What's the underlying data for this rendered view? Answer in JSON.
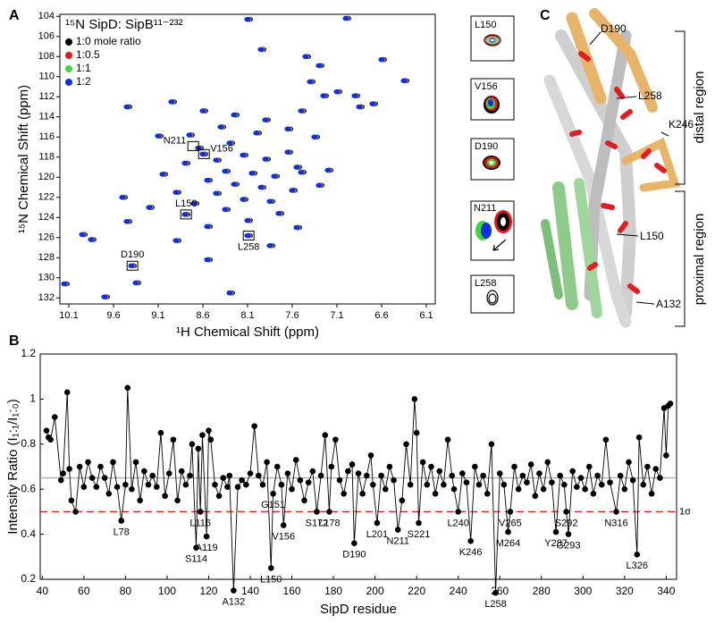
{
  "panel_labels": [
    "A",
    "B",
    "C"
  ],
  "insets": [
    "L150",
    "V156",
    "D190",
    "N211",
    "L258"
  ],
  "structure": {
    "residues": [
      "D190",
      "L258",
      "K246",
      "L150",
      "A132"
    ],
    "regions": [
      "distal region",
      "proximal region"
    ]
  },
  "chart_data": [
    {
      "type": "scatter",
      "legend_title": "¹⁵N SipD: SipB¹¹⁻²³²",
      "xlabel": "¹H Chemical Shift (ppm)",
      "ylabel": "¹⁵N Chemical Shift (ppm)",
      "legend": [
        {
          "name": "1:0 mole ratio",
          "color": "#000000"
        },
        {
          "name": "1:0.5",
          "color": "#e8141b"
        },
        {
          "name": "1:1",
          "color": "#3dd93a"
        },
        {
          "name": "1:2",
          "color": "#1030e0"
        }
      ],
      "xlim": [
        10.2,
        6.0
      ],
      "ylim": [
        103.8,
        132.6
      ],
      "y_inverted": true,
      "xticks": [
        10.1,
        9.6,
        9.1,
        8.6,
        8.1,
        7.6,
        7.1,
        6.6,
        6.1
      ],
      "yticks": [
        104,
        106,
        108,
        110,
        112,
        114,
        116,
        118,
        120,
        122,
        124,
        126,
        128,
        130,
        132
      ],
      "x": [
        7.0,
        8.1,
        7.45,
        7.95,
        7.3,
        6.6,
        6.35,
        7.4,
        7.1,
        7.25,
        6.9,
        6.85,
        7.5,
        6.7,
        8.95,
        8.6,
        9.45,
        8.25,
        7.9,
        8.4,
        9.1,
        7.65,
        8.0,
        8.3,
        8.65,
        8.6,
        8.45,
        8.15,
        7.9,
        7.65,
        8.8,
        9.05,
        8.35,
        8.05,
        7.8,
        7.5,
        7.2,
        8.55,
        8.25,
        7.95,
        7.6,
        8.9,
        8.45,
        8.15,
        7.85,
        7.3,
        9.5,
        8.7,
        8.8,
        8.35,
        7.75,
        9.45,
        8.55,
        8.1,
        7.55,
        8.9,
        8.1,
        7.85,
        9.85,
        9.95,
        9.4,
        8.55,
        9.35,
        9.7,
        10.15,
        8.3,
        7.55,
        7.35,
        8.75,
        9.2
      ],
      "y": [
        104.2,
        104.3,
        108.0,
        107.3,
        108.9,
        108.3,
        110.4,
        110.5,
        111.5,
        111.9,
        111.9,
        113.0,
        113.4,
        112.7,
        112.5,
        113.4,
        113.0,
        113.8,
        114.3,
        115.0,
        115.9,
        115.2,
        115.6,
        116.6,
        117.1,
        117.7,
        118.3,
        117.8,
        118.2,
        117.5,
        118.6,
        119.7,
        119.4,
        119.6,
        119.9,
        119.5,
        119.3,
        120.3,
        120.7,
        121.0,
        121.3,
        121.5,
        121.6,
        122.2,
        122.4,
        120.8,
        122.0,
        122.6,
        123.7,
        123.2,
        123.6,
        124.4,
        124.9,
        124.3,
        125.0,
        126.3,
        125.8,
        126.8,
        126.2,
        125.7,
        128.8,
        128.2,
        130.5,
        131.9,
        130.6,
        131.5,
        119.0,
        116.0,
        115.8,
        123.0
      ],
      "annotations": [
        {
          "text": "D190",
          "x": 9.4,
          "y": 128.8,
          "side": "above"
        },
        {
          "text": "L150",
          "x": 8.8,
          "y": 123.7,
          "side": "above"
        },
        {
          "text": "N211",
          "x": 8.72,
          "y": 116.9,
          "side": "left"
        },
        {
          "text": "V156",
          "x": 8.6,
          "y": 117.7,
          "side": "right"
        },
        {
          "text": "L258",
          "x": 8.1,
          "y": 125.8,
          "side": "below"
        }
      ]
    },
    {
      "type": "line",
      "xlabel": "SipD residue",
      "ylabel": "Intensity Ratio (I₁:₁/I₁:₀)",
      "xlim": [
        39,
        345
      ],
      "ylim": [
        0.2,
        1.2
      ],
      "xticks": [
        40,
        60,
        80,
        100,
        120,
        140,
        160,
        180,
        200,
        220,
        240,
        260,
        280,
        300,
        320,
        340
      ],
      "yticks": [
        0.2,
        0.4,
        0.6,
        0.8,
        1,
        1.2
      ],
      "color": "#000000",
      "mean_line": 0.65,
      "mean_color": "#999999",
      "threshold": {
        "value": 0.5,
        "label": "1σ",
        "color": "#e8141b"
      },
      "x": [
        42,
        43,
        44,
        46,
        49,
        50,
        52,
        53,
        54,
        56,
        58,
        60,
        62,
        64,
        66,
        68,
        70,
        72,
        74,
        76,
        78,
        80,
        81,
        83,
        85,
        87,
        89,
        91,
        93,
        95,
        97,
        99,
        101,
        103,
        105,
        107,
        109,
        111,
        112,
        114,
        115,
        116,
        117,
        119,
        120,
        121,
        123,
        125,
        127,
        129,
        130,
        132,
        134,
        136,
        138,
        140,
        142,
        144,
        146,
        148,
        150,
        151,
        153,
        155,
        156,
        158,
        160,
        162,
        164,
        166,
        168,
        170,
        172,
        174,
        176,
        178,
        179,
        181,
        183,
        185,
        187,
        189,
        190,
        192,
        194,
        196,
        198,
        199,
        201,
        203,
        205,
        207,
        209,
        211,
        213,
        215,
        217,
        219,
        220,
        221,
        223,
        225,
        227,
        229,
        231,
        233,
        235,
        237,
        238,
        240,
        242,
        244,
        246,
        248,
        250,
        252,
        254,
        256,
        258,
        260,
        262,
        264,
        265,
        267,
        269,
        271,
        273,
        275,
        277,
        279,
        281,
        283,
        285,
        287,
        289,
        291,
        292,
        293,
        295,
        297,
        299,
        301,
        303,
        305,
        307,
        309,
        311,
        313,
        316,
        318,
        320,
        322,
        324,
        326,
        327,
        329,
        331,
        333,
        335,
        337,
        339,
        340,
        341,
        342
      ],
      "values": [
        0.86,
        0.83,
        0.82,
        0.92,
        0.64,
        0.67,
        1.03,
        0.69,
        0.55,
        0.5,
        0.7,
        0.61,
        0.72,
        0.65,
        0.61,
        0.7,
        0.65,
        0.58,
        0.72,
        0.61,
        0.46,
        0.62,
        1.05,
        0.6,
        0.72,
        0.55,
        0.68,
        0.62,
        0.66,
        0.61,
        0.85,
        0.57,
        0.67,
        0.82,
        0.55,
        0.68,
        0.62,
        0.66,
        0.8,
        0.34,
        0.78,
        0.5,
        0.84,
        0.39,
        0.86,
        0.82,
        0.62,
        0.57,
        0.65,
        0.61,
        0.66,
        0.15,
        0.61,
        0.64,
        0.62,
        0.67,
        0.88,
        0.66,
        0.62,
        0.72,
        0.25,
        0.58,
        0.7,
        0.62,
        0.44,
        0.67,
        0.6,
        0.73,
        0.64,
        0.55,
        0.63,
        0.68,
        0.5,
        0.66,
        0.84,
        0.5,
        0.7,
        0.82,
        0.64,
        0.58,
        0.68,
        0.71,
        0.36,
        0.67,
        0.58,
        0.66,
        0.75,
        0.62,
        0.45,
        0.66,
        0.6,
        0.7,
        0.64,
        0.42,
        0.55,
        0.8,
        0.62,
        1.0,
        0.85,
        0.45,
        0.72,
        0.62,
        0.7,
        0.58,
        0.68,
        0.62,
        0.82,
        0.66,
        0.6,
        0.5,
        0.67,
        0.63,
        0.37,
        0.7,
        0.62,
        0.66,
        0.58,
        0.8,
        0.14,
        0.67,
        0.62,
        0.41,
        0.5,
        0.7,
        0.6,
        0.66,
        0.63,
        0.71,
        0.57,
        0.67,
        0.6,
        0.72,
        0.63,
        0.41,
        0.66,
        0.62,
        0.5,
        0.4,
        0.68,
        0.61,
        0.65,
        0.6,
        0.7,
        0.58,
        0.66,
        0.62,
        0.82,
        0.63,
        0.5,
        0.66,
        0.6,
        0.72,
        0.64,
        0.31,
        0.83,
        0.62,
        0.7,
        0.58,
        0.69,
        0.65,
        0.96,
        0.75,
        0.97,
        0.98
      ],
      "labels": [
        null,
        null,
        null,
        null,
        null,
        null,
        null,
        null,
        null,
        null,
        null,
        null,
        null,
        null,
        null,
        null,
        null,
        null,
        null,
        null,
        "L78",
        null,
        null,
        null,
        null,
        null,
        null,
        null,
        null,
        null,
        null,
        null,
        null,
        null,
        null,
        null,
        null,
        null,
        null,
        "S114",
        null,
        "L116",
        null,
        "A119",
        null,
        null,
        null,
        null,
        null,
        null,
        null,
        "A132",
        null,
        null,
        null,
        null,
        null,
        null,
        null,
        null,
        "L150",
        "G151",
        null,
        null,
        "V156",
        null,
        null,
        null,
        null,
        null,
        null,
        null,
        "S172",
        null,
        null,
        "L178",
        null,
        null,
        null,
        null,
        null,
        null,
        "D190",
        null,
        null,
        null,
        null,
        null,
        "L201",
        null,
        null,
        null,
        null,
        "N211",
        null,
        null,
        null,
        null,
        null,
        "S221",
        null,
        null,
        null,
        null,
        null,
        null,
        null,
        null,
        null,
        "L240",
        null,
        null,
        "K246",
        null,
        null,
        null,
        null,
        null,
        "L258",
        null,
        null,
        "M264",
        "V265",
        null,
        null,
        null,
        null,
        null,
        null,
        null,
        null,
        null,
        null,
        "Y287",
        null,
        null,
        "S292",
        "G293",
        null,
        null,
        null,
        null,
        null,
        null,
        null,
        null,
        null,
        null,
        "N316",
        null,
        null,
        null,
        null,
        "L326",
        null,
        null,
        null,
        null,
        null,
        null,
        null,
        null,
        null,
        null
      ]
    }
  ]
}
